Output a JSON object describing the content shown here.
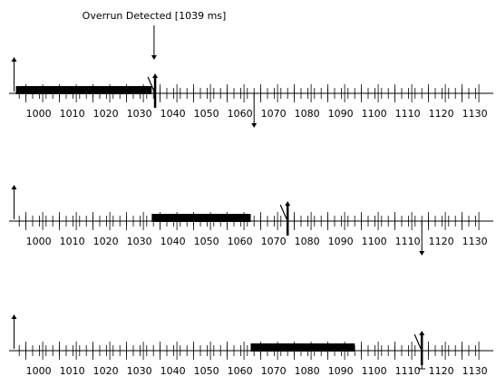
{
  "annotation": {
    "text": "Overrun Detected [1039 ms]"
  },
  "axis": {
    "start_ms": 997,
    "end_ms": 1135,
    "minor_step_ms": 2,
    "major_step_ms": 10,
    "labels": [
      "1000",
      "1010",
      "1020",
      "1030",
      "1040",
      "1050",
      "1060",
      "1070",
      "1080",
      "1090",
      "1100",
      "1110",
      "1120",
      "1130"
    ]
  },
  "rows": [
    {
      "release_ms": 997,
      "exec_start_ms": 997,
      "exec_end_ms": 1037.5,
      "overrun_at_ms": 1039,
      "deadline_ms": 1068,
      "completion_ms": 1038.5,
      "deadline_style": "down-arrow",
      "completion_style": "up-arrow"
    },
    {
      "release_ms": 997,
      "exec_start_ms": 1037.5,
      "exec_end_ms": 1067,
      "deadline_ms": 1118,
      "completion_ms": 1078,
      "deadline_style": "down-arrow",
      "completion_style": "up-arrow"
    },
    {
      "release_ms": 997,
      "exec_start_ms": 1067,
      "exec_end_ms": 1098,
      "deadline_ms": 1118,
      "completion_ms": 1118,
      "deadline_style": "t-bar",
      "completion_style": "up-arrow"
    }
  ],
  "colors": {
    "ink": "#000000",
    "exec_bar": "#000000"
  }
}
